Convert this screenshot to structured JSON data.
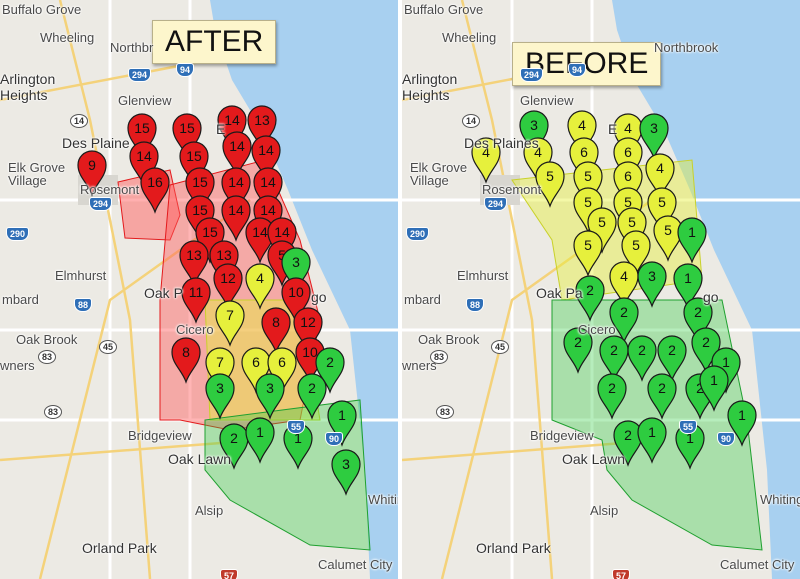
{
  "colors": {
    "red": "#e31a1c",
    "yellow": "#e6f03c",
    "green": "#2ecc40",
    "lake": "#a8d0f0",
    "map_bg": "#eceae4"
  },
  "after": {
    "caption": "AFTER",
    "places": [
      "Buffalo Grove",
      "Wheeling",
      "Northbr",
      "Arlington",
      "Heights",
      "Glenview",
      "Des Plaine",
      "Elk Grove",
      "Village",
      "Rosemont",
      "Elmhurst",
      "Oak P",
      "mbard",
      "Oak Brook",
      "wners",
      "Cicero",
      "Bridgeview",
      "Oak Lawn",
      "Alsip",
      "Orland Park",
      "Calumet City",
      "Whiting",
      "E",
      "go"
    ],
    "shields": [
      "294",
      "94",
      "14",
      "290",
      "294",
      "88",
      "45",
      "83",
      "83",
      "90",
      "55",
      "57"
    ],
    "pins": [
      {
        "n": "15",
        "c": "red"
      },
      {
        "n": "15",
        "c": "red"
      },
      {
        "n": "14",
        "c": "red"
      },
      {
        "n": "13",
        "c": "red"
      },
      {
        "n": "9",
        "c": "red"
      },
      {
        "n": "14",
        "c": "red"
      },
      {
        "n": "15",
        "c": "red"
      },
      {
        "n": "14",
        "c": "red"
      },
      {
        "n": "14",
        "c": "red"
      },
      {
        "n": "16",
        "c": "red"
      },
      {
        "n": "15",
        "c": "red"
      },
      {
        "n": "14",
        "c": "red"
      },
      {
        "n": "14",
        "c": "red"
      },
      {
        "n": "15",
        "c": "red"
      },
      {
        "n": "14",
        "c": "red"
      },
      {
        "n": "14",
        "c": "red"
      },
      {
        "n": "15",
        "c": "red"
      },
      {
        "n": "14",
        "c": "red"
      },
      {
        "n": "14",
        "c": "red"
      },
      {
        "n": "13",
        "c": "red"
      },
      {
        "n": "13",
        "c": "red"
      },
      {
        "n": "5",
        "c": "red"
      },
      {
        "n": "3",
        "c": "green"
      },
      {
        "n": "11",
        "c": "red"
      },
      {
        "n": "12",
        "c": "red"
      },
      {
        "n": "4",
        "c": "yellow"
      },
      {
        "n": "10",
        "c": "red"
      },
      {
        "n": "7",
        "c": "yellow"
      },
      {
        "n": "8",
        "c": "red"
      },
      {
        "n": "12",
        "c": "red"
      },
      {
        "n": "8",
        "c": "red"
      },
      {
        "n": "10",
        "c": "red"
      },
      {
        "n": "7",
        "c": "yellow"
      },
      {
        "n": "6",
        "c": "yellow"
      },
      {
        "n": "6",
        "c": "yellow"
      },
      {
        "n": "2",
        "c": "green"
      },
      {
        "n": "3",
        "c": "green"
      },
      {
        "n": "3",
        "c": "green"
      },
      {
        "n": "2",
        "c": "green"
      },
      {
        "n": "1",
        "c": "green"
      },
      {
        "n": "2",
        "c": "green"
      },
      {
        "n": "1",
        "c": "green"
      },
      {
        "n": "1",
        "c": "green"
      },
      {
        "n": "3",
        "c": "green"
      }
    ]
  },
  "before": {
    "caption": "BEFORE",
    "places": [
      "Buffalo Grove",
      "Wheeling",
      "Northbrook",
      "Arlington",
      "Heights",
      "Glenview",
      "Des Plaines",
      "Elk Grove",
      "Village",
      "Rosemont",
      "Elmhurst",
      "Oak Pa",
      "mbard",
      "Oak Brook",
      "wners",
      "Cicero",
      "Bridgeview",
      "Oak Lawn",
      "Alsip",
      "Orland Park",
      "Calumet City",
      "Whiting",
      "E",
      "go"
    ],
    "shields": [
      "294",
      "94",
      "14",
      "290",
      "294",
      "88",
      "45",
      "83",
      "83",
      "90",
      "55",
      "57"
    ],
    "pins": [
      {
        "n": "3",
        "c": "green"
      },
      {
        "n": "4",
        "c": "yellow"
      },
      {
        "n": "4",
        "c": "yellow"
      },
      {
        "n": "3",
        "c": "green"
      },
      {
        "n": "4",
        "c": "yellow"
      },
      {
        "n": "4",
        "c": "yellow"
      },
      {
        "n": "6",
        "c": "yellow"
      },
      {
        "n": "6",
        "c": "yellow"
      },
      {
        "n": "5",
        "c": "yellow"
      },
      {
        "n": "5",
        "c": "yellow"
      },
      {
        "n": "6",
        "c": "yellow"
      },
      {
        "n": "4",
        "c": "yellow"
      },
      {
        "n": "5",
        "c": "yellow"
      },
      {
        "n": "5",
        "c": "yellow"
      },
      {
        "n": "5",
        "c": "yellow"
      },
      {
        "n": "5",
        "c": "yellow"
      },
      {
        "n": "5",
        "c": "yellow"
      },
      {
        "n": "5",
        "c": "yellow"
      },
      {
        "n": "5",
        "c": "yellow"
      },
      {
        "n": "5",
        "c": "yellow"
      },
      {
        "n": "1",
        "c": "green"
      },
      {
        "n": "2",
        "c": "green"
      },
      {
        "n": "4",
        "c": "yellow"
      },
      {
        "n": "3",
        "c": "green"
      },
      {
        "n": "1",
        "c": "green"
      },
      {
        "n": "2",
        "c": "green"
      },
      {
        "n": "2",
        "c": "green"
      },
      {
        "n": "2",
        "c": "green"
      },
      {
        "n": "2",
        "c": "green"
      },
      {
        "n": "2",
        "c": "green"
      },
      {
        "n": "2",
        "c": "green"
      },
      {
        "n": "2",
        "c": "green"
      },
      {
        "n": "1",
        "c": "green"
      },
      {
        "n": "2",
        "c": "green"
      },
      {
        "n": "2",
        "c": "green"
      },
      {
        "n": "2",
        "c": "green"
      },
      {
        "n": "1",
        "c": "green"
      },
      {
        "n": "1",
        "c": "green"
      },
      {
        "n": "2",
        "c": "green"
      },
      {
        "n": "1",
        "c": "green"
      },
      {
        "n": "1",
        "c": "green"
      }
    ]
  }
}
